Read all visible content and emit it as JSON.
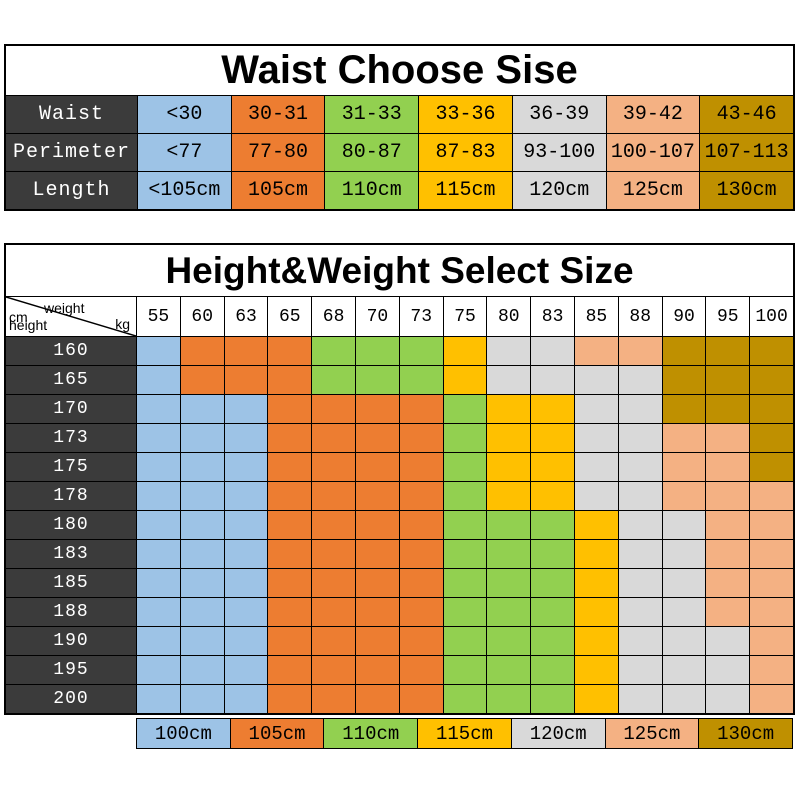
{
  "colors": {
    "background": "#FFFFFF",
    "header_bg": "#3B3B3B",
    "header_text": "#FFFFFF",
    "grid_line": "#000000",
    "title_text": "#000000"
  },
  "corner": {
    "weight": "weight",
    "kg": "kg",
    "cm": "cm",
    "height": "height"
  },
  "legend": {
    "position": "bottom",
    "items": [
      {
        "label": "100cm",
        "color": "#9DC3E6"
      },
      {
        "label": "105cm",
        "color": "#ED7D31"
      },
      {
        "label": "110cm",
        "color": "#92D050"
      },
      {
        "label": "115cm",
        "color": "#FFC000"
      },
      {
        "label": "120cm",
        "color": "#D9D9D9"
      },
      {
        "label": "125cm",
        "color": "#F4B183"
      },
      {
        "label": "130cm",
        "color": "#BF9000"
      }
    ]
  },
  "chart_data": [
    {
      "type": "table",
      "title": "Waist Choose Sise",
      "row_labels": [
        "Waist",
        "Perimeter",
        "Length"
      ],
      "rows": [
        [
          "<30",
          "30-31",
          "31-33",
          "33-36",
          "36-39",
          "39-42",
          "43-46"
        ],
        [
          "<77",
          "77-80",
          "80-87",
          "87-83",
          "93-100",
          "100-107",
          "107-113"
        ],
        [
          "<105cm",
          "105cm",
          "110cm",
          "115cm",
          "120cm",
          "125cm",
          "130cm"
        ]
      ],
      "column_colors": [
        "#9DC3E6",
        "#ED7D31",
        "#92D050",
        "#FFC000",
        "#D9D9D9",
        "#F4B183",
        "#BF9000"
      ]
    },
    {
      "type": "heatmap",
      "title": "Height&Weight Select Size",
      "x_label": "weight kg",
      "y_label": "cm height",
      "x": [
        55,
        60,
        63,
        65,
        68,
        70,
        73,
        75,
        80,
        83,
        85,
        88,
        90,
        95,
        100
      ],
      "y": [
        160,
        165,
        170,
        173,
        175,
        178,
        180,
        183,
        185,
        188,
        190,
        195,
        200
      ],
      "value_unit": "cm (recommended size, see legend)",
      "values": [
        [
          100,
          105,
          105,
          105,
          110,
          110,
          110,
          115,
          120,
          120,
          125,
          125,
          130,
          130,
          130
        ],
        [
          100,
          105,
          105,
          105,
          110,
          110,
          110,
          115,
          120,
          120,
          120,
          120,
          130,
          130,
          130
        ],
        [
          100,
          100,
          100,
          105,
          105,
          105,
          105,
          110,
          115,
          115,
          120,
          120,
          130,
          130,
          130
        ],
        [
          100,
          100,
          100,
          105,
          105,
          105,
          105,
          110,
          115,
          115,
          120,
          120,
          125,
          125,
          130
        ],
        [
          100,
          100,
          100,
          105,
          105,
          105,
          105,
          110,
          115,
          115,
          120,
          120,
          125,
          125,
          130
        ],
        [
          100,
          100,
          100,
          105,
          105,
          105,
          105,
          110,
          115,
          115,
          120,
          120,
          125,
          125,
          125
        ],
        [
          100,
          100,
          100,
          105,
          105,
          105,
          105,
          110,
          110,
          110,
          115,
          120,
          120,
          125,
          125
        ],
        [
          100,
          100,
          100,
          105,
          105,
          105,
          105,
          110,
          110,
          110,
          115,
          120,
          120,
          125,
          125
        ],
        [
          100,
          100,
          100,
          105,
          105,
          105,
          105,
          110,
          110,
          110,
          115,
          120,
          120,
          125,
          125
        ],
        [
          100,
          100,
          100,
          105,
          105,
          105,
          105,
          110,
          110,
          110,
          115,
          120,
          120,
          125,
          125
        ],
        [
          100,
          100,
          100,
          105,
          105,
          105,
          105,
          110,
          110,
          110,
          115,
          120,
          120,
          120,
          125
        ],
        [
          100,
          100,
          100,
          105,
          105,
          105,
          105,
          110,
          110,
          110,
          115,
          120,
          120,
          120,
          125
        ],
        [
          100,
          100,
          100,
          105,
          105,
          105,
          105,
          110,
          110,
          110,
          115,
          120,
          120,
          120,
          125
        ]
      ],
      "legend_position": "bottom"
    }
  ]
}
